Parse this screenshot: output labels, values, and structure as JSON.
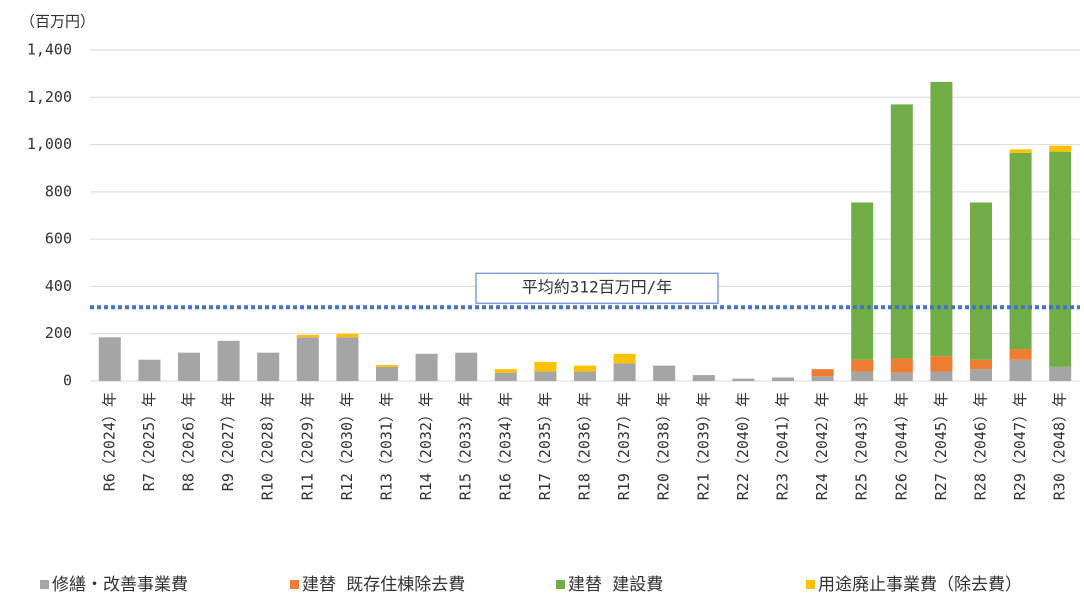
{
  "chart_data": {
    "type": "stacked_bar",
    "y_unit_label": "（百万円）",
    "categories": [
      "R6（2024）年",
      "R7（2025）年",
      "R8（2026）年",
      "R9（2027）年",
      "R10（2028）年",
      "R11（2029）年",
      "R12（2030）年",
      "R13（2031）年",
      "R14（2032）年",
      "R15（2033）年",
      "R16（2034）年",
      "R17（2035）年",
      "R18（2036）年",
      "R19（2037）年",
      "R20（2038）年",
      "R21（2039）年",
      "R22（2040）年",
      "R23（2041）年",
      "R24（2042）年",
      "R25（2043）年",
      "R26（2044）年",
      "R27（2045）年",
      "R28（2046）年",
      "R29（2047）年",
      "R30（2048）年"
    ],
    "series": [
      {
        "name": "修繕・改善事業費",
        "color": "#a5a5a5",
        "values": [
          185,
          90,
          120,
          170,
          120,
          185,
          185,
          60,
          115,
          120,
          35,
          40,
          40,
          75,
          65,
          25,
          10,
          15,
          20,
          40,
          35,
          40,
          50,
          90,
          60
        ]
      },
      {
        "name": "建替 既存住棟除去費",
        "color": "#ed7d31",
        "values": [
          0,
          0,
          0,
          0,
          0,
          0,
          0,
          0,
          0,
          0,
          0,
          0,
          0,
          0,
          0,
          0,
          0,
          0,
          30,
          50,
          60,
          65,
          40,
          45,
          0
        ]
      },
      {
        "name": "建替 建設費",
        "color": "#70ad47",
        "values": [
          0,
          0,
          0,
          0,
          0,
          0,
          0,
          0,
          0,
          0,
          0,
          0,
          0,
          0,
          0,
          0,
          0,
          0,
          0,
          665,
          1075,
          1160,
          665,
          830,
          910
        ]
      },
      {
        "name": "用途廃止事業費（除去費）",
        "color": "#ffc000",
        "values": [
          0,
          0,
          0,
          0,
          0,
          10,
          15,
          8,
          0,
          0,
          15,
          40,
          25,
          40,
          0,
          0,
          0,
          0,
          0,
          0,
          0,
          0,
          0,
          15,
          25
        ]
      }
    ],
    "ylim": [
      0,
      1400
    ],
    "yticks": [
      0,
      200,
      400,
      600,
      800,
      {
        "value": 1000,
        "label": "1,000"
      },
      {
        "value": 1200,
        "label": "1,200"
      },
      {
        "value": 1400,
        "label": "1,400"
      }
    ],
    "grid": true,
    "average": {
      "value": 312,
      "label": "平均約312百万円/年",
      "color": "#4472c4"
    },
    "legend": "bottom"
  }
}
